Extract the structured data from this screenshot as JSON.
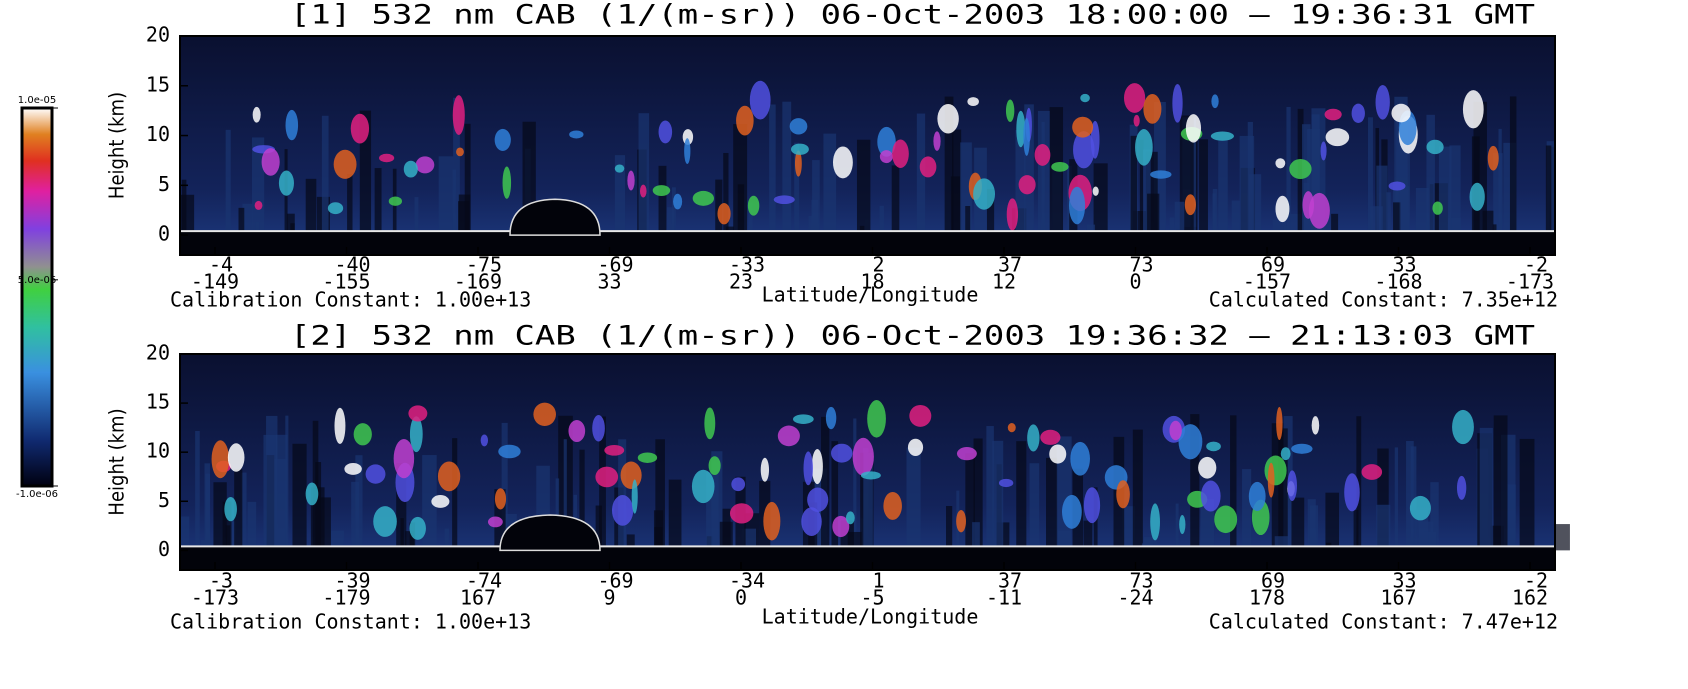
{
  "chart_data": [
    {
      "type": "lidar-curtain",
      "title": "[1]  532 nm CAB (1/(m-sr)) 06-Oct-2003 18:00:00 – 19:36:31 GMT",
      "y_label": "Height (km)",
      "x_label": "Latitude/Longitude",
      "calibration": "Calibration Constant: 1.00e+13",
      "calculated": "Calculated Constant: 7.35e+12",
      "ylim": [
        -2,
        20
      ],
      "yticks": [
        0,
        5,
        10,
        15,
        20
      ],
      "xticks": [
        {
          "lat": -4,
          "lon": -149
        },
        {
          "lat": -40,
          "lon": -155
        },
        {
          "lat": -75,
          "lon": -169
        },
        {
          "lat": -69,
          "lon": 33
        },
        {
          "lat": -33,
          "lon": 23
        },
        {
          "lat": 2,
          "lon": 18
        },
        {
          "lat": 37,
          "lon": 12
        },
        {
          "lat": 73,
          "lon": 0
        },
        {
          "lat": 69,
          "lon": -157
        },
        {
          "lat": 33,
          "lon": -168
        },
        {
          "lat": -2,
          "lon": -173
        }
      ]
    },
    {
      "type": "lidar-curtain",
      "title": "[2]  532 nm CAB (1/(m-sr)) 06-Oct-2003 19:36:32 – 21:13:03 GMT",
      "y_label": "Height (km)",
      "x_label": "Latitude/Longitude",
      "calibration": "Calibration Constant: 1.00e+13",
      "calculated": "Calculated Constant: 7.47e+12",
      "ylim": [
        -2,
        20
      ],
      "yticks": [
        0,
        5,
        10,
        15,
        20
      ],
      "xticks": [
        {
          "lat": -3,
          "lon": -173
        },
        {
          "lat": -39,
          "lon": -179
        },
        {
          "lat": -74,
          "lon": 167
        },
        {
          "lat": -69,
          "lon": 9
        },
        {
          "lat": -34,
          "lon": 0
        },
        {
          "lat": 1,
          "lon": -5
        },
        {
          "lat": 37,
          "lon": -11
        },
        {
          "lat": 73,
          "lon": -24
        },
        {
          "lat": 69,
          "lon": 178
        },
        {
          "lat": 33,
          "lon": 167
        },
        {
          "lat": -2,
          "lon": 162
        }
      ]
    }
  ],
  "colorbar": {
    "lim": [
      -1e-06,
      1e-05
    ],
    "ticks": [
      {
        "value": 1e-05,
        "label": "1.0e-05"
      },
      {
        "value": 5e-06,
        "label": "5.0e-06"
      },
      {
        "value": -1e-06,
        "label": "-1.0e-06"
      }
    ]
  }
}
